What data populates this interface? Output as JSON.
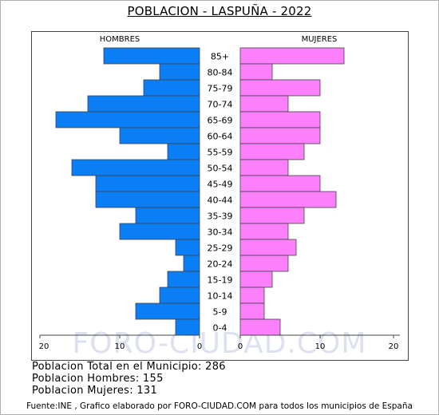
{
  "title": "POBLACION - LASPUÑA - 2022",
  "watermark": "FORO-CIUDAD.COM",
  "stats": {
    "total": "Poblacion Total en el Municipio: 286",
    "hombres": "Poblacion Hombres: 155",
    "mujeres": "Poblacion Mujeres: 131"
  },
  "footer": "Fuente:INE , Grafico elaborado por FORO-CIUDAD.COM para todos los municipios de España",
  "colors": {
    "male": "#0a7ef5",
    "female": "#fc7ffc",
    "border": "#444444"
  },
  "chart_data": {
    "type": "bar",
    "orientation": "horizontal",
    "series_labels": [
      "HOMBRES",
      "MUJERES"
    ],
    "categories": [
      "85+",
      "80-84",
      "75-79",
      "70-74",
      "65-69",
      "60-64",
      "55-59",
      "50-54",
      "45-49",
      "40-44",
      "35-39",
      "30-34",
      "25-29",
      "20-24",
      "15-19",
      "10-14",
      "5-9",
      "0-4"
    ],
    "series": [
      {
        "name": "HOMBRES",
        "values": [
          12,
          5,
          7,
          14,
          18,
          10,
          4,
          16,
          13,
          13,
          8,
          10,
          3,
          2,
          4,
          5,
          8,
          3
        ]
      },
      {
        "name": "MUJERES",
        "values": [
          13,
          4,
          10,
          6,
          10,
          10,
          8,
          6,
          10,
          12,
          8,
          6,
          7,
          6,
          4,
          3,
          3,
          5
        ]
      }
    ],
    "xlim": [
      0,
      20
    ],
    "x_ticks_left": [
      "20",
      "10",
      "0"
    ],
    "x_ticks_right": [
      "0",
      "10",
      "20"
    ],
    "grid": false
  }
}
